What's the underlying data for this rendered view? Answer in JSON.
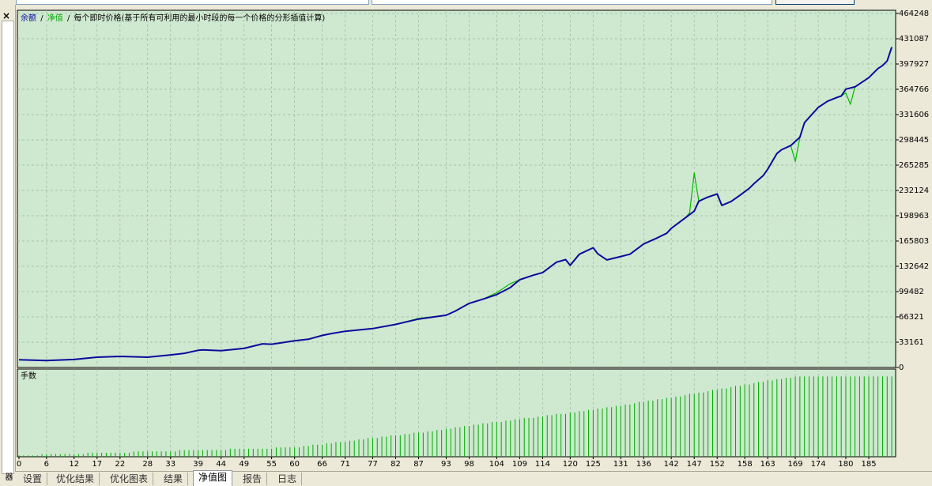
{
  "window": {
    "close_glyph": "×",
    "side_label": "测试器"
  },
  "legend": {
    "balance": "余额",
    "sep1": "/",
    "equity": "净值",
    "sep2": "/",
    "note": "每个即时价格(基于所有可利用的最小时段的每一个价格的分形插值计算)"
  },
  "lots_label": "手数",
  "tabs": [
    "设置",
    "优化结果",
    "优化图表",
    "结果",
    "净值图",
    "报告",
    "日志"
  ],
  "active_tab": "净值图",
  "colors": {
    "background": "#cfe8d0",
    "balance": "#0a0a9c",
    "equity": "#00bb00",
    "lots": "#00aa00",
    "grid": "#9ab89a"
  },
  "chart_data": [
    {
      "type": "line",
      "legend": [
        "余额",
        "净值"
      ],
      "ylim": [
        0,
        464248
      ],
      "yticks": [
        0,
        33161,
        66321,
        99482,
        132642,
        165803,
        198963,
        232124,
        265285,
        298445,
        331606,
        364766,
        397927,
        431087,
        464248
      ],
      "grid": true,
      "series": [
        {
          "name": "余额",
          "x": [
            0,
            6,
            12,
            17,
            22,
            28,
            33,
            36,
            39,
            40,
            44,
            49,
            53,
            55,
            60,
            63,
            66,
            68,
            71,
            77,
            82,
            87,
            93,
            95,
            98,
            101,
            104,
            107,
            109,
            112,
            114,
            117,
            119,
            120,
            122,
            125,
            126,
            128,
            131,
            133,
            136,
            139,
            141,
            142,
            145,
            147,
            148,
            150,
            152,
            153,
            155,
            157,
            159,
            160,
            162,
            163,
            165,
            166,
            168,
            170,
            171,
            174,
            176,
            178,
            179,
            180,
            182,
            185,
            187,
            188,
            189,
            190
          ],
          "y": [
            10000,
            9000,
            10500,
            13500,
            14500,
            13500,
            16500,
            18500,
            22500,
            23000,
            22000,
            25000,
            31000,
            30500,
            35000,
            37000,
            42000,
            44500,
            47500,
            51000,
            56500,
            63500,
            68500,
            74000,
            84000,
            89500,
            95500,
            105000,
            115000,
            121000,
            124500,
            138000,
            141500,
            134000,
            148500,
            157000,
            149000,
            141000,
            145500,
            148500,
            162000,
            170000,
            176000,
            182500,
            196000,
            205000,
            218000,
            223500,
            227500,
            212500,
            217500,
            226000,
            235000,
            241000,
            251500,
            260000,
            280500,
            285500,
            291000,
            302000,
            321000,
            341000,
            349000,
            354000,
            356000,
            365000,
            368000,
            380000,
            392000,
            396000,
            402000,
            420000
          ]
        },
        {
          "name": "净值",
          "x": [
            0,
            6,
            12,
            17,
            22,
            28,
            33,
            36,
            39,
            40,
            44,
            49,
            53,
            55,
            60,
            63,
            66,
            68,
            71,
            77,
            82,
            87,
            93,
            95,
            98,
            101,
            104,
            107,
            109,
            112,
            114,
            117,
            119,
            120,
            122,
            125,
            126,
            128,
            131,
            133,
            136,
            139,
            141,
            142,
            145,
            146,
            147,
            148,
            150,
            152,
            153,
            155,
            157,
            159,
            160,
            162,
            163,
            165,
            166,
            168,
            169,
            170,
            171,
            174,
            176,
            178,
            179,
            180,
            181,
            182,
            185,
            187,
            188,
            189,
            190
          ],
          "y": [
            10000,
            9000,
            10500,
            13500,
            14500,
            13500,
            16500,
            18500,
            22500,
            23000,
            22000,
            25500,
            31000,
            30500,
            35000,
            37000,
            42000,
            44500,
            47500,
            51000,
            56500,
            64500,
            68500,
            74000,
            84000,
            89500,
            98000,
            110000,
            115000,
            121000,
            124500,
            138000,
            141500,
            134000,
            148500,
            157000,
            149000,
            141000,
            145500,
            148500,
            162000,
            170000,
            176000,
            182500,
            196000,
            203000,
            255000,
            218000,
            223500,
            227500,
            212500,
            217500,
            226000,
            235000,
            241000,
            251500,
            260000,
            280500,
            285500,
            291000,
            270000,
            302000,
            321000,
            341000,
            349000,
            354000,
            356000,
            360000,
            345000,
            368000,
            380000,
            392000,
            396000,
            402000,
            420000
          ]
        }
      ]
    },
    {
      "type": "bar",
      "title": "手数",
      "xticks": [
        0,
        6,
        12,
        17,
        22,
        28,
        33,
        39,
        44,
        49,
        55,
        60,
        66,
        71,
        77,
        82,
        87,
        93,
        98,
        104,
        109,
        114,
        120,
        125,
        131,
        136,
        142,
        147,
        152,
        158,
        163,
        169,
        174,
        180,
        185
      ],
      "n_bars": 191,
      "lots_growth": [
        {
          "x": 0,
          "v": 0.1
        },
        {
          "x": 60,
          "v": 0.7
        },
        {
          "x": 87,
          "v": 1.8
        },
        {
          "x": 104,
          "v": 2.6
        },
        {
          "x": 125,
          "v": 3.5
        },
        {
          "x": 145,
          "v": 4.6
        },
        {
          "x": 160,
          "v": 5.5
        },
        {
          "x": 170,
          "v": 6.0
        },
        {
          "x": 190,
          "v": 6.0
        }
      ],
      "ymax": 6.2
    }
  ]
}
